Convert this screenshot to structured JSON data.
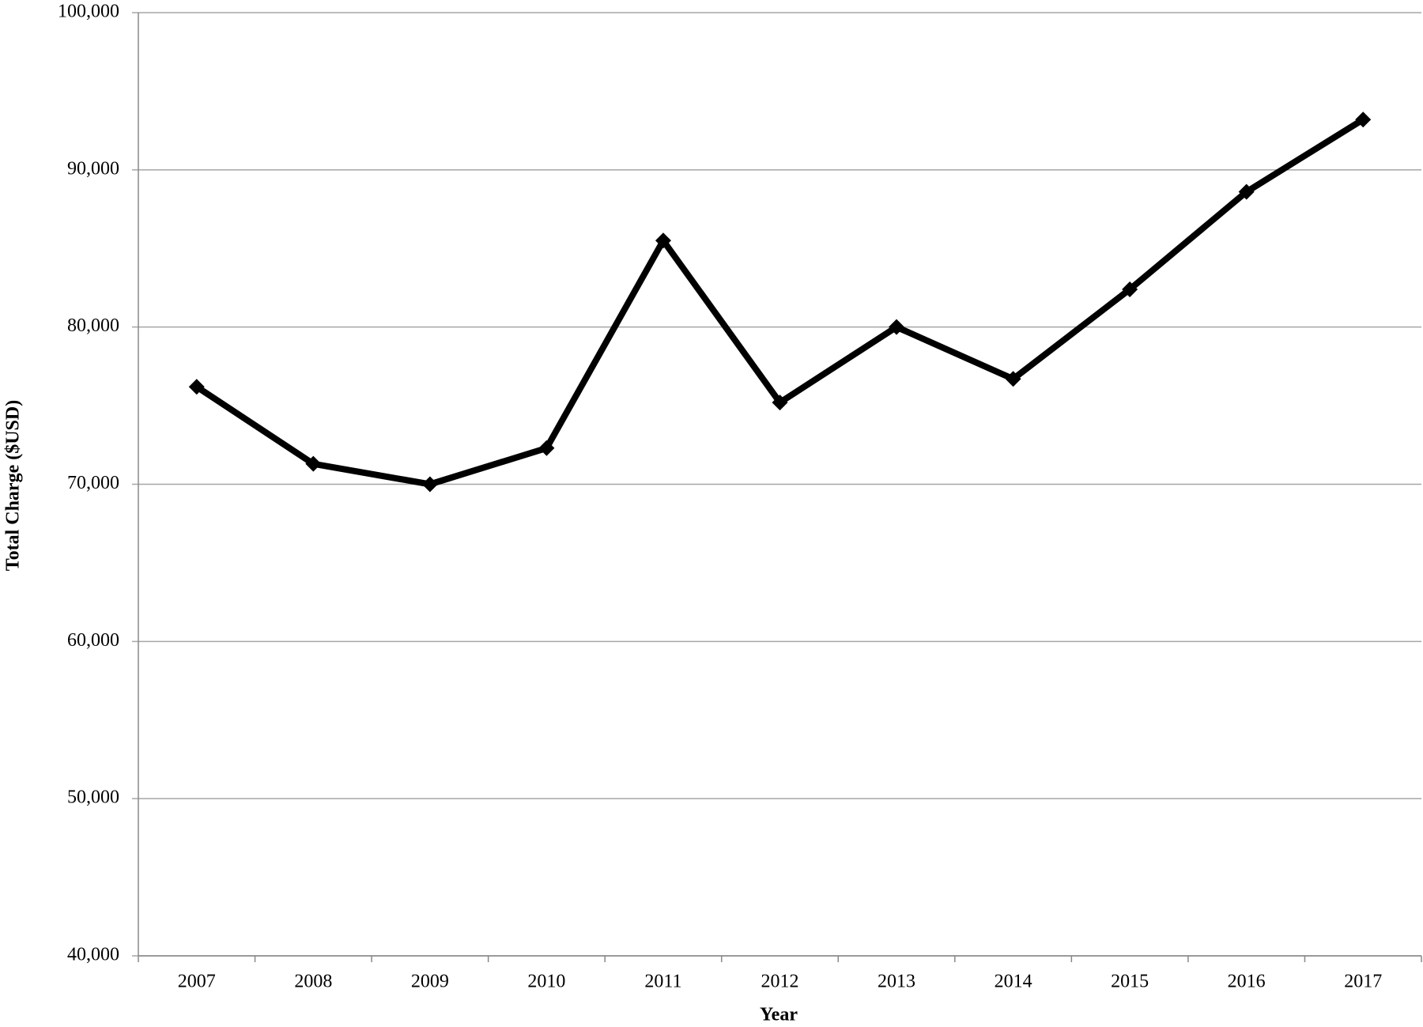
{
  "chart_data": {
    "type": "line",
    "x_label": "Year",
    "y_label": "Total Charge ($USD)",
    "categories": [
      "2007",
      "2008",
      "2009",
      "2010",
      "2011",
      "2012",
      "2013",
      "2014",
      "2015",
      "2016",
      "2017"
    ],
    "values": [
      76200,
      71300,
      70000,
      72300,
      85500,
      75200,
      80000,
      76700,
      82400,
      88600,
      93200
    ],
    "color": "#000000",
    "ylim": [
      40000,
      100000
    ],
    "yticks": [
      {
        "value": 40000,
        "label": "40,000"
      },
      {
        "value": 50000,
        "label": "50,000"
      },
      {
        "value": 60000,
        "label": "60,000"
      },
      {
        "value": 70000,
        "label": "70,000"
      },
      {
        "value": 80000,
        "label": "80,000"
      },
      {
        "value": 90000,
        "label": "90,000"
      },
      {
        "value": 100000,
        "label": "100,000"
      }
    ],
    "grid": true
  }
}
